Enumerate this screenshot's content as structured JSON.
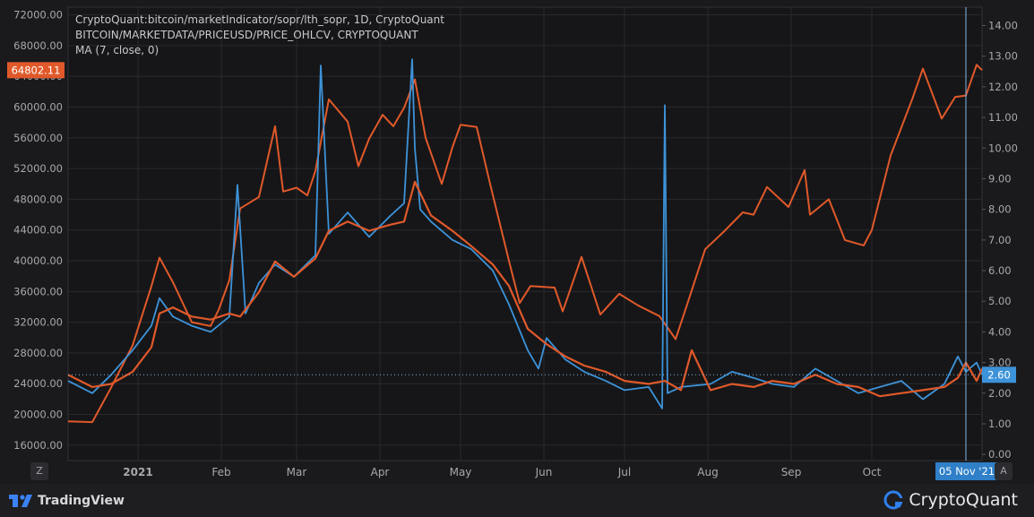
{
  "legend": {
    "line1": "CryptoQuant:bitcoin/marketIndicator/sopr/lth_sopr, 1D, CryptoQuant",
    "line2": "BITCOIN/MARKETDATA/PRICEUSD/PRICE_OHLCV, CRYPTOQUANT",
    "line3": "MA (7, close, 0)"
  },
  "left_axis": {
    "ticks": [
      "72000.00",
      "68000.00",
      "64000.00",
      "60000.00",
      "56000.00",
      "52000.00",
      "48000.00",
      "44000.00",
      "40000.00",
      "36000.00",
      "32000.00",
      "28000.00",
      "24000.00",
      "20000.00",
      "16000.00"
    ],
    "current_label": "64802.11"
  },
  "right_axis": {
    "ticks": [
      "14.00",
      "13.00",
      "12.00",
      "11.00",
      "10.00",
      "9.00",
      "8.00",
      "7.00",
      "6.00",
      "5.00",
      "4.00",
      "3.00",
      "2.00",
      "1.00",
      "0.00"
    ],
    "current_label": "2.60"
  },
  "x_axis": {
    "ticks": [
      "2021",
      "Feb",
      "Mar",
      "Apr",
      "May",
      "Jun",
      "Jul",
      "Aug",
      "Sep",
      "Oct"
    ],
    "crosshair_label": "05 Nov '21"
  },
  "buttons": {
    "left_corner": "Z",
    "right_corner": "A"
  },
  "footer": {
    "tradingview": "TradingView",
    "cryptoquant": "CryptoQuant"
  },
  "colors": {
    "price": "#e0592a",
    "sopr": "#3d93d9",
    "ma": "#e0592a",
    "background": "#1a1a1d",
    "grid": "#2a2a2e"
  },
  "chart_data": {
    "type": "line",
    "title": "",
    "xlabel": "",
    "ylabel_left": "",
    "ylabel_right": "",
    "ylim_left": [
      14000,
      73000
    ],
    "ylim_right": [
      -0.2,
      14.6
    ],
    "x_range": [
      "2020-12-06",
      "2021-11-11"
    ],
    "crosshair_date": "2021-11-05",
    "series": [
      {
        "axis": "left",
        "x": [
          "2020-12-06",
          "2020-12-15",
          "2020-12-22",
          "2020-12-30",
          "2021-01-06",
          "2021-01-09",
          "2021-01-14",
          "2021-01-21",
          "2021-01-28",
          "2021-01-31",
          "2021-02-04",
          "2021-02-08",
          "2021-02-15",
          "2021-02-21",
          "2021-02-24",
          "2021-03-01",
          "2021-03-05",
          "2021-03-08",
          "2021-03-13",
          "2021-03-20",
          "2021-03-24",
          "2021-03-28",
          "2021-04-02",
          "2021-04-06",
          "2021-04-10",
          "2021-04-14",
          "2021-04-18",
          "2021-04-24",
          "2021-04-28",
          "2021-05-01",
          "2021-05-07",
          "2021-05-12",
          "2021-05-19",
          "2021-05-23",
          "2021-05-27",
          "2021-06-05",
          "2021-06-08",
          "2021-06-15",
          "2021-06-22",
          "2021-06-29",
          "2021-07-06",
          "2021-07-14",
          "2021-07-20",
          "2021-07-24",
          "2021-07-31",
          "2021-08-07",
          "2021-08-14",
          "2021-08-18",
          "2021-08-23",
          "2021-08-31",
          "2021-09-06",
          "2021-09-08",
          "2021-09-15",
          "2021-09-21",
          "2021-09-28",
          "2021-10-01",
          "2021-10-08",
          "2021-10-16",
          "2021-10-20",
          "2021-10-27",
          "2021-11-01",
          "2021-11-05",
          "2021-11-09",
          "2021-11-11"
        ],
        "values": [
          19100,
          19000,
          23500,
          29000,
          36700,
          40400,
          37200,
          32000,
          31500,
          33600,
          37500,
          46800,
          48300,
          57500,
          49000,
          49500,
          48500,
          51700,
          61000,
          58100,
          52300,
          55900,
          59000,
          57500,
          59900,
          63600,
          56000,
          50000,
          54800,
          57700,
          57400,
          50000,
          40000,
          34500,
          36700,
          36500,
          33400,
          40500,
          33000,
          35700,
          34200,
          32800,
          29800,
          34000,
          41500,
          43800,
          46300,
          46000,
          49600,
          47000,
          51800,
          46000,
          48000,
          42700,
          42000,
          44000,
          53700,
          61000,
          65000,
          58500,
          61300,
          61500,
          65500,
          64800
        ]
      },
      {
        "axis": "right",
        "x": [
          "2020-12-06",
          "2020-12-15",
          "2020-12-22",
          "2020-12-30",
          "2021-01-06",
          "2021-01-09",
          "2021-01-14",
          "2021-01-21",
          "2021-01-28",
          "2021-02-04",
          "2021-02-08",
          "2021-02-15",
          "2021-02-21",
          "2021-02-28",
          "2021-03-08",
          "2021-03-13",
          "2021-03-20",
          "2021-03-28",
          "2021-04-05",
          "2021-04-10",
          "2021-04-14",
          "2021-04-20",
          "2021-04-28",
          "2021-05-05",
          "2021-05-13",
          "2021-05-19",
          "2021-05-26",
          "2021-06-02",
          "2021-06-09",
          "2021-06-16",
          "2021-06-24",
          "2021-07-01",
          "2021-07-10",
          "2021-07-16",
          "2021-07-22",
          "2021-07-26",
          "2021-08-02",
          "2021-08-10",
          "2021-08-18",
          "2021-08-25",
          "2021-09-02",
          "2021-09-10",
          "2021-09-18",
          "2021-09-26",
          "2021-10-04",
          "2021-10-12",
          "2021-10-20",
          "2021-10-28",
          "2021-11-02",
          "2021-11-05",
          "2021-11-09",
          "2021-11-11"
        ],
        "values": [
          2.6,
          2.2,
          2.3,
          2.7,
          3.5,
          4.6,
          4.8,
          4.5,
          4.4,
          4.6,
          4.5,
          5.3,
          6.3,
          5.8,
          6.4,
          7.3,
          7.6,
          7.3,
          7.5,
          7.6,
          8.9,
          7.8,
          7.3,
          6.8,
          6.2,
          5.5,
          4.1,
          3.6,
          3.2,
          2.9,
          2.7,
          2.4,
          2.3,
          2.4,
          2.1,
          3.4,
          2.1,
          2.3,
          2.2,
          2.4,
          2.3,
          2.6,
          2.3,
          2.2,
          1.9,
          2.0,
          2.1,
          2.2,
          2.5,
          3.0,
          2.4,
          2.8
        ]
      },
      {
        "axis": "right",
        "x": [
          "2020-12-06",
          "2020-12-15",
          "2020-12-22",
          "2020-12-30",
          "2021-01-06",
          "2021-01-09",
          "2021-01-14",
          "2021-01-21",
          "2021-01-28",
          "2021-02-04",
          "2021-02-07",
          "2021-02-10",
          "2021-02-15",
          "2021-02-21",
          "2021-02-28",
          "2021-03-08",
          "2021-03-10",
          "2021-03-13",
          "2021-03-20",
          "2021-03-28",
          "2021-04-05",
          "2021-04-10",
          "2021-04-13",
          "2021-04-14",
          "2021-04-16",
          "2021-04-20",
          "2021-04-28",
          "2021-05-05",
          "2021-05-13",
          "2021-05-19",
          "2021-05-26",
          "2021-05-30",
          "2021-06-02",
          "2021-06-09",
          "2021-06-16",
          "2021-06-24",
          "2021-07-01",
          "2021-07-10",
          "2021-07-15",
          "2021-07-16",
          "2021-07-17",
          "2021-07-22",
          "2021-08-02",
          "2021-08-10",
          "2021-08-18",
          "2021-08-25",
          "2021-09-02",
          "2021-09-10",
          "2021-09-18",
          "2021-09-26",
          "2021-10-04",
          "2021-10-12",
          "2021-10-20",
          "2021-10-28",
          "2021-11-02",
          "2021-11-05",
          "2021-11-09",
          "2021-11-11"
        ],
        "values": [
          2.4,
          2.0,
          2.6,
          3.4,
          4.2,
          5.1,
          4.5,
          4.2,
          4.0,
          4.5,
          8.8,
          4.6,
          5.6,
          6.2,
          5.8,
          6.5,
          12.7,
          7.2,
          7.9,
          7.1,
          7.8,
          8.2,
          12.9,
          10.0,
          8.0,
          7.6,
          7.0,
          6.7,
          6.0,
          4.9,
          3.4,
          2.8,
          3.8,
          3.1,
          2.7,
          2.4,
          2.1,
          2.2,
          1.5,
          11.4,
          2.0,
          2.2,
          2.3,
          2.7,
          2.5,
          2.3,
          2.2,
          2.8,
          2.4,
          2.0,
          2.2,
          2.4,
          1.8,
          2.3,
          3.2,
          2.7,
          3.0,
          2.6
        ]
      }
    ]
  }
}
